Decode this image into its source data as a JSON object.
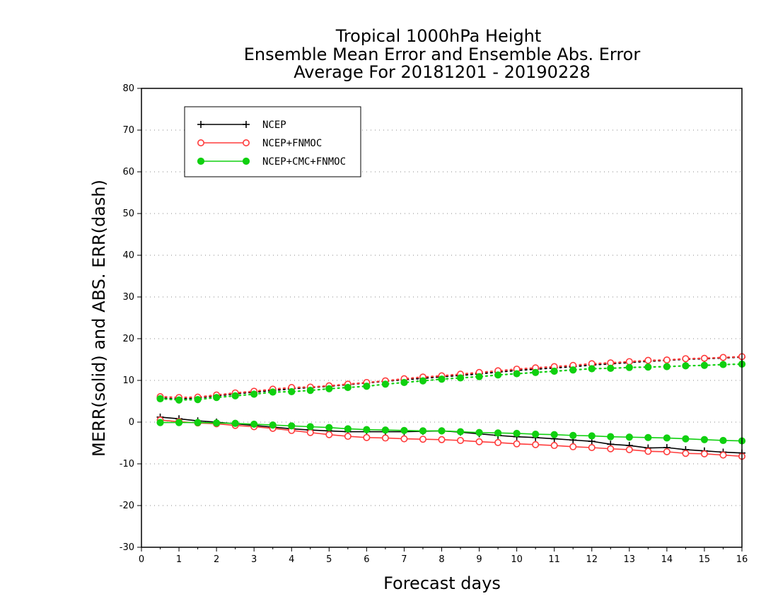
{
  "chart_data": {
    "type": "line",
    "title": [
      "Tropical 1000hPa Height",
      "Ensemble Mean Error and Ensemble Abs. Error",
      "Average For 20181201 - 20190228"
    ],
    "xlabel": "Forecast days",
    "ylabel": "MERR(solid) and ABS. ERR(dash)",
    "xlim": [
      0,
      16
    ],
    "ylim": [
      -30,
      80
    ],
    "xticks": [
      0,
      1,
      2,
      3,
      4,
      5,
      6,
      7,
      8,
      9,
      10,
      11,
      12,
      13,
      14,
      15,
      16
    ],
    "yticks": [
      -30,
      -20,
      -10,
      0,
      10,
      20,
      30,
      40,
      50,
      60,
      70,
      80
    ],
    "grid": "horizontal dotted",
    "legend_position": "top-left",
    "x": [
      0.5,
      1,
      1.5,
      2,
      2.5,
      3,
      3.5,
      4,
      4.5,
      5,
      5.5,
      6,
      6.5,
      7,
      7.5,
      8,
      8.5,
      9,
      9.5,
      10,
      10.5,
      11,
      11.5,
      12,
      12.5,
      13,
      13.5,
      14,
      14.5,
      15,
      15.5,
      16
    ],
    "series": [
      {
        "name": "NCEP",
        "color": "#000000",
        "marker": "plus",
        "merr": [
          1.2,
          0.8,
          0.3,
          0,
          -0.4,
          -0.8,
          -1.2,
          -1.6,
          -1.9,
          -2.1,
          -2.3,
          -2.3,
          -2.3,
          -2.3,
          -2.2,
          -2.1,
          -2.4,
          -2.8,
          -3.2,
          -3.5,
          -3.7,
          -4.0,
          -4.3,
          -4.6,
          -5.3,
          -5.6,
          -6.2,
          -6.1,
          -6.6,
          -6.9,
          -7.2,
          -7.4
        ],
        "abs_err": [
          5.8,
          5.5,
          5.8,
          6.3,
          6.8,
          7.2,
          7.6,
          8.0,
          8.3,
          8.6,
          9.0,
          9.4,
          9.8,
          10.2,
          10.5,
          10.9,
          11.2,
          11.6,
          12.0,
          12.4,
          12.7,
          13.0,
          13.3,
          13.7,
          14.0,
          14.3,
          14.6,
          14.8,
          15.1,
          15.2,
          15.4,
          15.6
        ]
      },
      {
        "name": "NCEP+FNMOC",
        "color": "#ff3b3b",
        "marker": "open-circle",
        "merr": [
          0.5,
          0.1,
          -0.2,
          -0.4,
          -0.8,
          -1.1,
          -1.5,
          -2.0,
          -2.5,
          -3.0,
          -3.4,
          -3.7,
          -3.8,
          -4.0,
          -4.1,
          -4.2,
          -4.4,
          -4.7,
          -4.9,
          -5.2,
          -5.4,
          -5.6,
          -5.9,
          -6.1,
          -6.4,
          -6.6,
          -7.0,
          -7.1,
          -7.5,
          -7.6,
          -7.9,
          -8.2
        ],
        "abs_err": [
          6.1,
          5.9,
          6.0,
          6.5,
          7.0,
          7.4,
          7.9,
          8.3,
          8.4,
          8.7,
          9.1,
          9.5,
          9.9,
          10.4,
          10.8,
          11.1,
          11.5,
          11.9,
          12.3,
          12.7,
          13.0,
          13.3,
          13.6,
          14.0,
          14.2,
          14.5,
          14.8,
          14.9,
          15.2,
          15.3,
          15.5,
          15.7
        ]
      },
      {
        "name": "NCEP+CMC+FNMOC",
        "color": "#10d010",
        "marker": "filled-circle",
        "merr": [
          -0.1,
          -0.1,
          -0.1,
          -0.2,
          -0.3,
          -0.5,
          -0.7,
          -0.9,
          -1.1,
          -1.3,
          -1.6,
          -1.8,
          -1.9,
          -2.0,
          -2.1,
          -2.1,
          -2.3,
          -2.5,
          -2.6,
          -2.7,
          -2.9,
          -3.0,
          -3.2,
          -3.3,
          -3.5,
          -3.6,
          -3.7,
          -3.8,
          -4.0,
          -4.2,
          -4.4,
          -4.5
        ],
        "abs_err": [
          5.6,
          5.3,
          5.4,
          5.9,
          6.3,
          6.7,
          7.2,
          7.3,
          7.6,
          8.0,
          8.3,
          8.6,
          9.1,
          9.5,
          9.9,
          10.3,
          10.6,
          10.9,
          11.3,
          11.6,
          11.9,
          12.2,
          12.5,
          12.8,
          12.9,
          13.1,
          13.2,
          13.3,
          13.5,
          13.6,
          13.8,
          13.9
        ]
      }
    ]
  }
}
